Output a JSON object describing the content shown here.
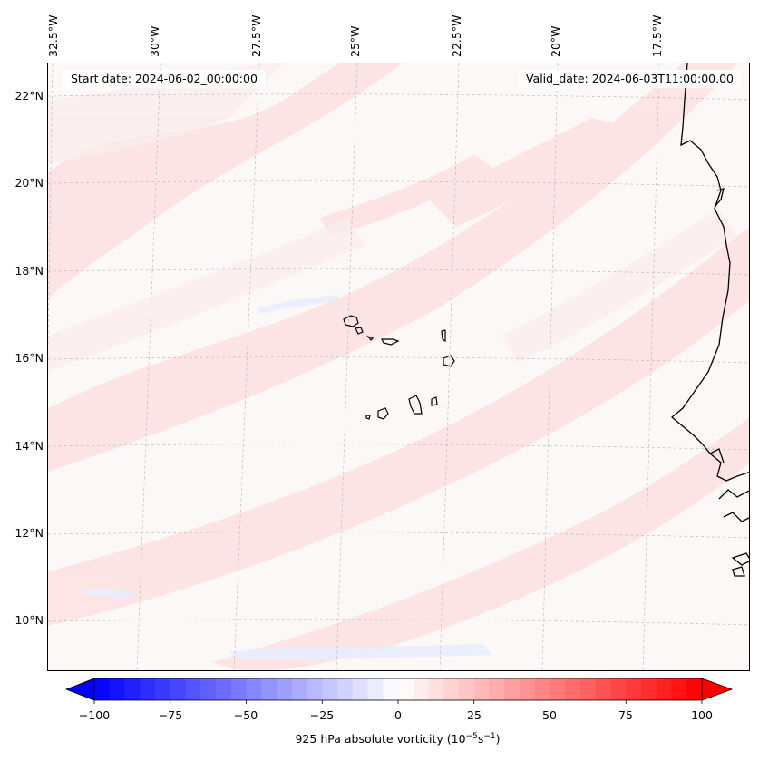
{
  "header": {
    "start_date": "Start date: 2024-06-02_00:00:00",
    "valid_date": "Valid_date: 2024-06-03T11:00:00.00"
  },
  "map": {
    "lon_labels": [
      "32.5°W",
      "30°W",
      "27.5°W",
      "25°W",
      "22.5°W",
      "20°W",
      "17.5°W"
    ],
    "lat_labels": [
      "22°N",
      "20°N",
      "18°N",
      "16°N",
      "14°N",
      "12°N",
      "10°N"
    ],
    "colors": {
      "positive": "#ff0000",
      "negative": "#0000ff",
      "coast": "#000000",
      "grid": "#b0b0b0"
    }
  },
  "colorbar": {
    "ticks": [
      "−100",
      "−75",
      "−50",
      "−25",
      "0",
      "25",
      "50",
      "75",
      "100"
    ],
    "label_main": "925 hPa absolute vorticity (10",
    "label_exp1": "−5",
    "label_mid": "s",
    "label_exp2": "−1",
    "label_end": ")"
  }
}
